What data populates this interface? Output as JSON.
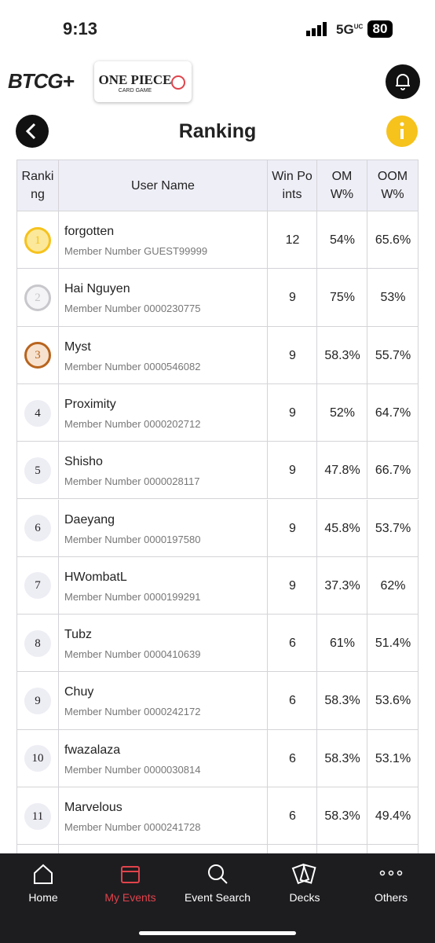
{
  "status_bar": {
    "time": "9:13",
    "network": "5G",
    "network_sup": "UC",
    "battery": "80"
  },
  "header": {
    "app_logo": "BTCG+",
    "game_logo_main": "ONE PIECE",
    "game_logo_sub": "CARD GAME",
    "title": "Ranking"
  },
  "table": {
    "columns": [
      "Ranking",
      "User Name",
      "Win Points",
      "OMW%",
      "OOMW%"
    ],
    "rows": [
      [
        1,
        "forgotten",
        "Member Number GUEST99999",
        12,
        "54%",
        "65.6%"
      ],
      [
        2,
        "Hai Nguyen",
        "Member Number 0000230775",
        9,
        "75%",
        "53%"
      ],
      [
        3,
        "Myst",
        "Member Number 0000546082",
        9,
        "58.3%",
        "55.7%"
      ],
      [
        4,
        "Proximity",
        "Member Number 0000202712",
        9,
        "52%",
        "64.7%"
      ],
      [
        5,
        "Shisho",
        "Member Number 0000028117",
        9,
        "47.8%",
        "66.7%"
      ],
      [
        6,
        "Daeyang",
        "Member Number 0000197580",
        9,
        "45.8%",
        "53.7%"
      ],
      [
        7,
        "HWombatL",
        "Member Number 0000199291",
        9,
        "37.3%",
        "62%"
      ],
      [
        8,
        "Tubz",
        "Member Number 0000410639",
        6,
        "61%",
        "51.4%"
      ],
      [
        9,
        "Chuy",
        "Member Number 0000242172",
        6,
        "58.3%",
        "53.6%"
      ],
      [
        10,
        "fwazalaza",
        "Member Number 0000030814",
        6,
        "58.3%",
        "53.1%"
      ],
      [
        11,
        "Marvelous",
        "Member Number 0000241728",
        6,
        "58.3%",
        "49.4%"
      ]
    ]
  },
  "nav": {
    "items": [
      "Home",
      "My Events",
      "Event Search",
      "Decks",
      "Others"
    ],
    "active": 1
  }
}
